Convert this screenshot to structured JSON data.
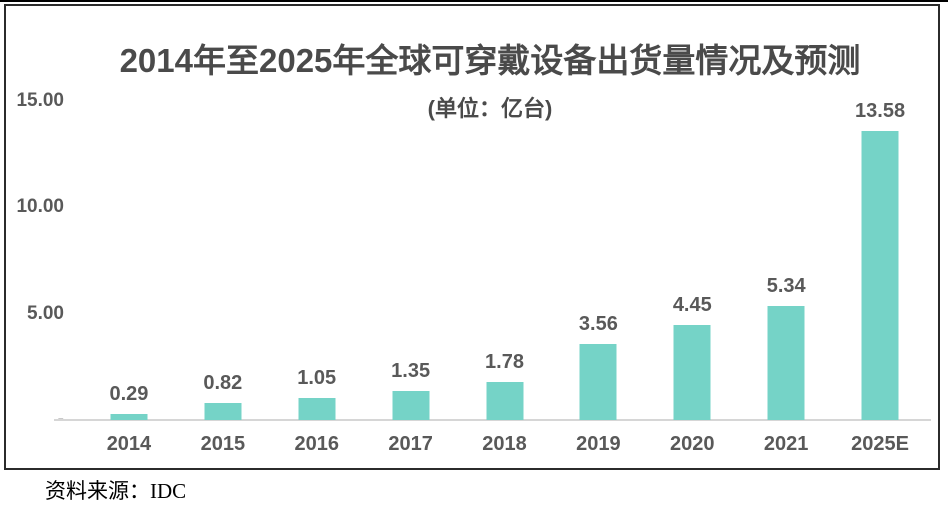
{
  "page": {
    "source_note": "资料来源：IDC"
  },
  "chart_data": {
    "type": "bar",
    "title": "2014年至2025年全球可穿戴设备出货量情况及预测",
    "subtitle": "(单位：亿台)",
    "categories": [
      "2014",
      "2015",
      "2016",
      "2017",
      "2018",
      "2019",
      "2020",
      "2021",
      "2025E"
    ],
    "values": [
      0.29,
      0.82,
      1.05,
      1.35,
      1.78,
      3.56,
      4.45,
      5.34,
      13.58
    ],
    "value_labels": [
      "0.29",
      "0.82",
      "1.05",
      "1.35",
      "1.78",
      "3.56",
      "4.45",
      "5.34",
      "13.58"
    ],
    "xlabel": "",
    "ylabel": "",
    "ylim": [
      0,
      15.5
    ],
    "yticks": [
      {
        "label": "15.00",
        "value": 15
      },
      {
        "label": "10.00",
        "value": 10
      },
      {
        "label": "5.00",
        "value": 5
      },
      {
        "label": "-",
        "value": 0
      }
    ],
    "grid": false,
    "legend": null,
    "colors": {
      "bar": "#75d3c7",
      "label": "#595959",
      "title": "#4a4a4a",
      "axis_line": "#d6d6d6",
      "border": "#2b2b2b",
      "source_text": "#000000"
    }
  }
}
